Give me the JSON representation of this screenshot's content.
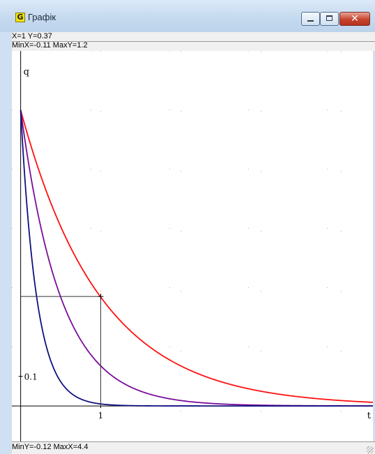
{
  "window": {
    "icon_letter": "G",
    "title": "Графік"
  },
  "status": {
    "cursor": "X=1  Y=0.37",
    "range_top": "MinX=-0.11  MaxY=1.2",
    "range_bottom": "MinY=-0.12  MaxX=4.4"
  },
  "colors": {
    "red_curve": "#ff1010",
    "purple_curve": "#7a0d9a",
    "blue_curve": "#101080",
    "axes": "#000000",
    "grid_dots": "#b0b0b0"
  },
  "chart_data": {
    "type": "line",
    "xlabel": "t",
    "ylabel": "q",
    "xlim": [
      -0.11,
      4.4
    ],
    "ylim": [
      -0.12,
      1.2
    ],
    "tick_labels": [
      {
        "axis": "x",
        "value": 1,
        "text": "1"
      },
      {
        "axis": "y",
        "value": 0.1,
        "text": "0.1"
      }
    ],
    "crosshair": {
      "x": 1,
      "y": 0.37
    },
    "grid": "dotted",
    "series": [
      {
        "color": "#ff1010",
        "x": [
          0,
          0.25,
          0.5,
          0.75,
          1,
          1.5,
          2,
          2.5,
          3,
          3.5,
          4,
          4.4
        ],
        "y": [
          1.0,
          0.78,
          0.61,
          0.47,
          0.37,
          0.22,
          0.14,
          0.08,
          0.05,
          0.03,
          0.02,
          0.01
        ]
      },
      {
        "color": "#7a0d9a",
        "x": [
          0,
          0.25,
          0.5,
          0.75,
          1,
          1.5,
          2,
          2.5,
          3,
          3.5
        ],
        "y": [
          1.0,
          0.61,
          0.37,
          0.22,
          0.14,
          0.05,
          0.02,
          0.01,
          0.0,
          0.0
        ]
      },
      {
        "color": "#101080",
        "x": [
          0,
          0.1,
          0.2,
          0.3,
          0.5,
          0.75,
          1,
          1.5,
          2,
          2.5
        ],
        "y": [
          1.0,
          0.61,
          0.37,
          0.22,
          0.08,
          0.02,
          0.01,
          0.0,
          0.0,
          0.0
        ]
      }
    ]
  }
}
